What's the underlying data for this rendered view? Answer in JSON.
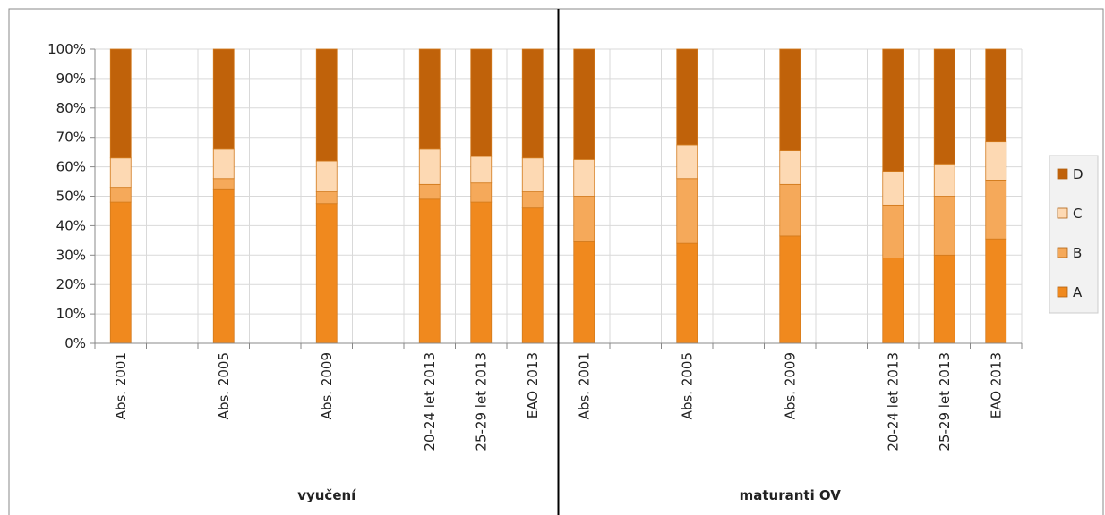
{
  "chart_data": {
    "type": "bar",
    "stacked": true,
    "percent_stacked": true,
    "ylim": [
      0,
      100
    ],
    "y_ticks": [
      "0%",
      "10%",
      "20%",
      "30%",
      "40%",
      "50%",
      "60%",
      "70%",
      "80%",
      "90%",
      "100%"
    ],
    "grid": true,
    "legend_position": "right",
    "groups": [
      {
        "label": "vyučení",
        "categories": [
          "Abs. 2001",
          "",
          "Abs. 2005",
          "",
          "Abs. 2009",
          "",
          "20-24 let 2013",
          "25-29 let 2013",
          "EAO 2013"
        ]
      },
      {
        "label": "maturanti OV",
        "categories": [
          "Abs. 2001",
          "",
          "Abs. 2005",
          "",
          "Abs. 2009",
          "",
          "20-24 let 2013",
          "25-29 let 2013",
          "EAO 2013"
        ]
      }
    ],
    "series": [
      {
        "name": "A",
        "color": "#F0891E",
        "values": [
          48,
          null,
          52.5,
          null,
          47.5,
          null,
          49,
          48,
          46,
          34.5,
          null,
          34,
          null,
          36.5,
          null,
          29,
          30,
          35.5
        ]
      },
      {
        "name": "B",
        "color": "#F5A95A",
        "values": [
          5,
          null,
          3.5,
          null,
          4,
          null,
          5,
          6.5,
          5.5,
          15.5,
          null,
          22,
          null,
          17.5,
          null,
          18,
          20,
          20
        ]
      },
      {
        "name": "C",
        "color": "#FDD9B3",
        "values": [
          10,
          null,
          10,
          null,
          10.5,
          null,
          12,
          9,
          11.5,
          12.5,
          null,
          11.5,
          null,
          11.5,
          null,
          11.5,
          11,
          13
        ]
      },
      {
        "name": "D",
        "color": "#C0620A",
        "values": [
          37,
          null,
          34,
          null,
          38,
          null,
          34,
          36.5,
          37,
          37.5,
          null,
          32.5,
          null,
          34.5,
          null,
          41.5,
          39,
          31.5
        ]
      }
    ]
  }
}
